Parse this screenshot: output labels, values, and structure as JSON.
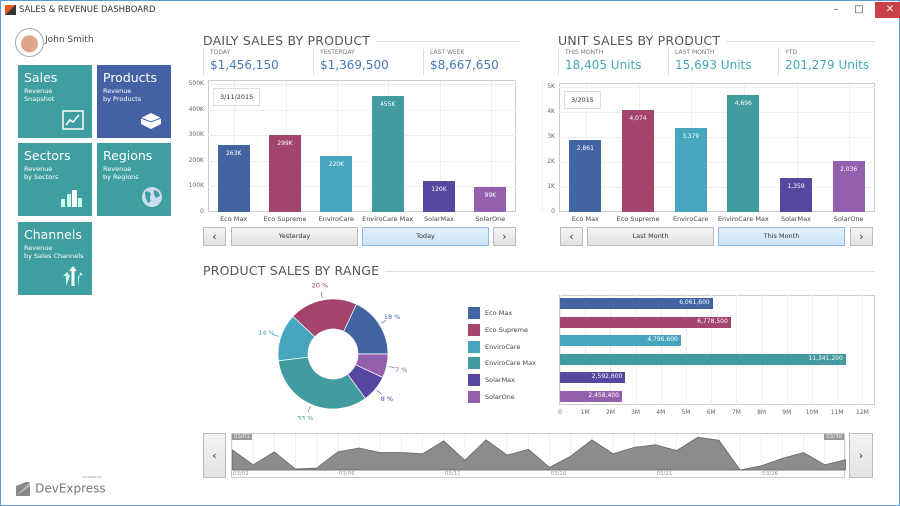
{
  "window": {
    "title": "SALES & REVENUE DASHBOARD",
    "minimize": "–",
    "maximize": "□",
    "close": "✕"
  },
  "user": {
    "name": "John Smith"
  },
  "tiles": [
    {
      "title": "Sales",
      "sub1": "Revenue",
      "sub2": "Snapshot",
      "color": "#3f9ea0",
      "icon": "line-chart-icon"
    },
    {
      "title": "Products",
      "sub1": "Revenue",
      "sub2": "by Products",
      "color": "#4563a4",
      "icon": "box-icon"
    },
    {
      "title": "Sectors",
      "sub1": "Revenue",
      "sub2": "by Sectors",
      "color": "#3f9ea0",
      "icon": "bar-chart-icon"
    },
    {
      "title": "Regions",
      "sub1": "Revenue",
      "sub2": "by Regions",
      "color": "#3f9ea0",
      "icon": "globe-icon"
    },
    {
      "title": "Channels",
      "sub1": "Revenue",
      "sub2": "by Sales Channels",
      "color": "#3f9ea0",
      "icon": "split-arrows-icon"
    }
  ],
  "colors": {
    "products": [
      "#4364a3",
      "#a2446b",
      "#46a5bf",
      "#429c9f",
      "#5747a1",
      "#9460ad"
    ],
    "daily_kpi": "#4a78b8",
    "unit_kpi": "#45a9b5"
  },
  "daily": {
    "title": "DAILY SALES BY PRODUCT",
    "kpis": [
      {
        "label": "TODAY",
        "value": "$1,456,150"
      },
      {
        "label": "YESTERDAY",
        "value": "$1,369,500"
      },
      {
        "label": "LAST WEEK",
        "value": "$8,667,650"
      }
    ],
    "date": "3/11/2015",
    "prev": "‹",
    "next": "›",
    "buttons": [
      "Yesterday",
      "Today"
    ],
    "selected": 1
  },
  "unit": {
    "title": "UNIT SALES BY PRODUCT",
    "kpis": [
      {
        "label": "THIS MONTH",
        "value": "18,405 Units"
      },
      {
        "label": "LAST MONTH",
        "value": "15,693 Units"
      },
      {
        "label": "YTD",
        "value": "201,279 Units"
      }
    ],
    "date": "3/2015",
    "prev": "‹",
    "next": "›",
    "buttons": [
      "Last Month",
      "This Month"
    ],
    "selected": 1
  },
  "range": {
    "title": "PRODUCT SALES BY RANGE",
    "prev": "‹",
    "next": "›"
  },
  "branding": {
    "powered_by": "POWERED BY",
    "logo": "DevExpress"
  },
  "chart_data": [
    {
      "type": "bar",
      "categories": [
        "Eco Max",
        "Eco Supreme",
        "EnviroCare",
        "EnviroCare Max",
        "SolarMax",
        "SolarOne"
      ],
      "values": [
        263000,
        299000,
        220000,
        455000,
        120000,
        99000
      ],
      "labels": [
        "263K",
        "299K",
        "220K",
        "455K",
        "120K",
        "99K"
      ],
      "yticks": [
        "0",
        "100K",
        "200K",
        "300K",
        "400K",
        "500K"
      ],
      "ylim": [
        0,
        500000
      ],
      "grid": true
    },
    {
      "type": "bar",
      "categories": [
        "Eco Max",
        "Eco Supreme",
        "EnviroCare",
        "EnviroCare Max",
        "SolarMax",
        "SolarOne"
      ],
      "values": [
        2861,
        4074,
        3379,
        4696,
        1359,
        2036
      ],
      "labels": [
        "2,861",
        "4,074",
        "3,379",
        "4,696",
        "1,359",
        "2,036"
      ],
      "yticks": [
        "0",
        "1K",
        "2K",
        "3K",
        "4K",
        "5K"
      ],
      "ylim": [
        0,
        5000
      ],
      "grid": true
    },
    {
      "type": "pie",
      "donut": true,
      "categories": [
        "Eco Max",
        "Eco Supreme",
        "EnviroCare",
        "EnviroCare Max",
        "SolarMax",
        "SolarOne"
      ],
      "values": [
        18,
        20,
        14,
        33,
        8,
        7
      ],
      "labels": [
        "18 %",
        "20 %",
        "14 %",
        "33 %",
        "8 %",
        "7 %"
      ],
      "legend": "right"
    },
    {
      "type": "bar",
      "orientation": "horizontal",
      "categories": [
        "Eco Max",
        "Eco Supreme",
        "EnviroCare",
        "EnviroCare Max",
        "SolarMax",
        "SolarOne"
      ],
      "values": [
        6061600,
        6778500,
        4796600,
        11341200,
        2592600,
        2458400
      ],
      "labels": [
        "6,061,600",
        "6,778,500",
        "4,796,600",
        "11,341,200",
        "2,592,600",
        "2,458,400"
      ],
      "xticks": [
        "0",
        "1M",
        "2M",
        "3M",
        "4M",
        "5M",
        "6M",
        "7M",
        "8M",
        "9M",
        "10M",
        "11M",
        "12M"
      ],
      "xlim": [
        0,
        12000000
      ],
      "grid": true
    },
    {
      "type": "area",
      "x_start": "03/01",
      "x_end": "03/30",
      "xticks": [
        "03/01",
        "03/06",
        "03/11",
        "03/16",
        "03/21",
        "03/26"
      ],
      "values": [
        63,
        16,
        56,
        3,
        6,
        56,
        68,
        54,
        54,
        50,
        90,
        30,
        93,
        46,
        64,
        8,
        43,
        93,
        50,
        70,
        78,
        60,
        101,
        92,
        0,
        13,
        36,
        54,
        16,
        32
      ],
      "selection": [
        "03/01",
        "03/30"
      ],
      "color": "#8c8c8c"
    }
  ]
}
